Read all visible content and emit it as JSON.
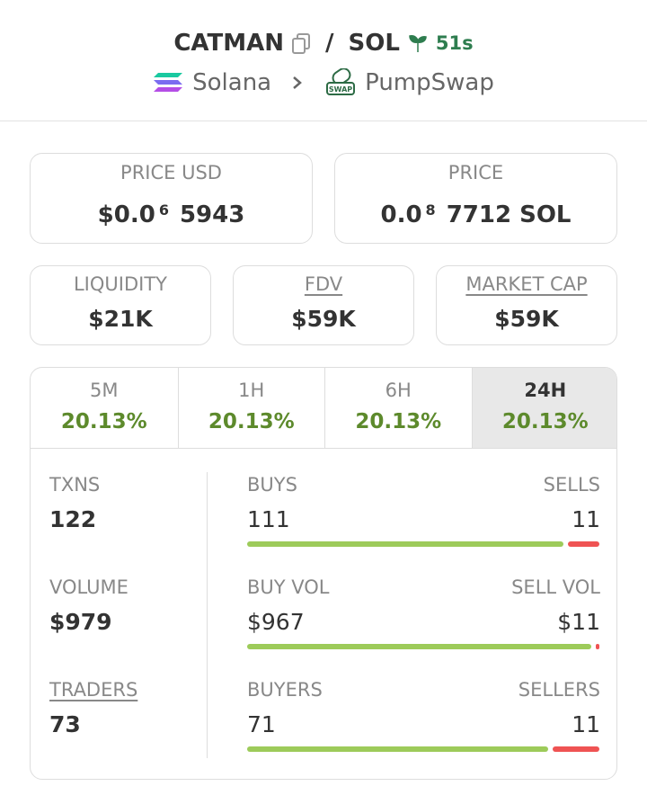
{
  "header": {
    "token": "CATMAN",
    "separator": "/",
    "quote": "SOL",
    "age": "51s",
    "chain": "Solana",
    "dex": "PumpSwap"
  },
  "prices": [
    {
      "label": "PRICE USD",
      "parts": [
        "$0.0",
        "6",
        "5943"
      ]
    },
    {
      "label": "PRICE",
      "parts": [
        "0.0",
        "8",
        "7712 SOL"
      ]
    }
  ],
  "stats": [
    {
      "label": "LIQUIDITY",
      "value": "$21K",
      "underline": false
    },
    {
      "label": "FDV",
      "value": "$59K",
      "underline": true
    },
    {
      "label": "MARKET CAP",
      "value": "$59K",
      "underline": true
    }
  ],
  "tabs": [
    {
      "label": "5M",
      "change": "20.13%"
    },
    {
      "label": "1H",
      "change": "20.13%"
    },
    {
      "label": "6H",
      "change": "20.13%"
    },
    {
      "label": "24H",
      "change": "20.13%"
    }
  ],
  "active_tab": 3,
  "metrics": [
    {
      "label": "TXNS",
      "value": "122",
      "underline": false
    },
    {
      "label": "VOLUME",
      "value": "$979",
      "underline": false
    },
    {
      "label": "TRADERS",
      "value": "73",
      "underline": true
    }
  ],
  "splits": [
    {
      "left_label": "BUYS",
      "right_label": "SELLS",
      "left": 111,
      "right": 11
    },
    {
      "left_label": "BUY VOL",
      "right_label": "SELL VOL",
      "left": {
        "value": 967,
        "label": "$967"
      },
      "right": {
        "value": 11,
        "label": "$11"
      }
    },
    {
      "left_label": "BUYERS",
      "right_label": "SELLERS",
      "left": 71,
      "right": 11
    }
  ]
}
